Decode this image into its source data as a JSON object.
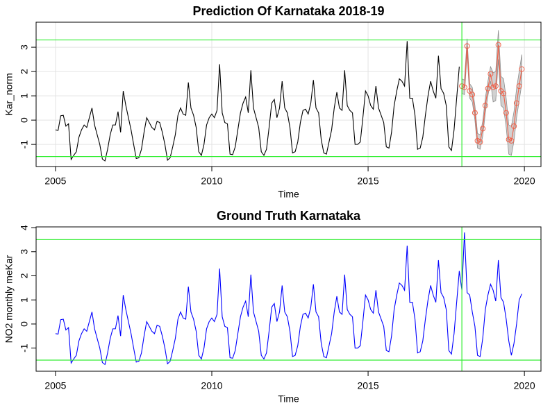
{
  "chart_data": [
    {
      "type": "line",
      "title": "Prediction Of Karnataka 2018-19",
      "x_label": "Time",
      "y_label": "Kar_norm",
      "xlim": [
        2004.38,
        2020.53
      ],
      "ylim": [
        -1.91,
        4.03
      ],
      "xticks": [
        2005,
        2010,
        2015,
        2020
      ],
      "yticks": [
        -1,
        0,
        1,
        2,
        3
      ],
      "grid": true,
      "hlines": [
        3.3,
        -1.5
      ],
      "vlines": [
        2018
      ],
      "ref_color": "#33ee33",
      "x": [
        2005,
        2005.083,
        2005.167,
        2005.25,
        2005.333,
        2005.417,
        2005.5,
        2005.583,
        2005.667,
        2005.75,
        2005.833,
        2005.917,
        2006,
        2006.083,
        2006.167,
        2006.25,
        2006.333,
        2006.417,
        2006.5,
        2006.583,
        2006.667,
        2006.75,
        2006.833,
        2006.917,
        2007,
        2007.083,
        2007.167,
        2007.25,
        2007.333,
        2007.417,
        2007.5,
        2007.583,
        2007.667,
        2007.75,
        2007.833,
        2007.917,
        2008,
        2008.083,
        2008.167,
        2008.25,
        2008.333,
        2008.417,
        2008.5,
        2008.583,
        2008.667,
        2008.75,
        2008.833,
        2008.917,
        2009,
        2009.083,
        2009.167,
        2009.25,
        2009.333,
        2009.417,
        2009.5,
        2009.583,
        2009.667,
        2009.75,
        2009.833,
        2009.917,
        2010,
        2010.083,
        2010.167,
        2010.25,
        2010.333,
        2010.417,
        2010.5,
        2010.583,
        2010.667,
        2010.75,
        2010.833,
        2010.917,
        2011,
        2011.083,
        2011.167,
        2011.25,
        2011.333,
        2011.417,
        2011.5,
        2011.583,
        2011.667,
        2011.75,
        2011.833,
        2011.917,
        2012,
        2012.083,
        2012.167,
        2012.25,
        2012.333,
        2012.417,
        2012.5,
        2012.583,
        2012.667,
        2012.75,
        2012.833,
        2012.917,
        2013,
        2013.083,
        2013.167,
        2013.25,
        2013.333,
        2013.417,
        2013.5,
        2013.583,
        2013.667,
        2013.75,
        2013.833,
        2013.917,
        2014,
        2014.083,
        2014.167,
        2014.25,
        2014.333,
        2014.417,
        2014.5,
        2014.583,
        2014.667,
        2014.75,
        2014.833,
        2014.917,
        2015,
        2015.083,
        2015.167,
        2015.25,
        2015.333,
        2015.417,
        2015.5,
        2015.583,
        2015.667,
        2015.75,
        2015.833,
        2015.917,
        2016,
        2016.083,
        2016.167,
        2016.25,
        2016.333,
        2016.417,
        2016.5,
        2016.583,
        2016.667,
        2016.75,
        2016.833,
        2016.917,
        2017,
        2017.083,
        2017.167,
        2017.25,
        2017.333,
        2017.417,
        2017.5,
        2017.583,
        2017.667,
        2017.75,
        2017.833,
        2017.917,
        2018,
        2018.083,
        2018.167,
        2018.25,
        2018.333,
        2018.417,
        2018.5,
        2018.583,
        2018.667,
        2018.75,
        2018.833,
        2018.917,
        2019,
        2019.083,
        2019.167,
        2019.25,
        2019.333,
        2019.417,
        2019.5,
        2019.583,
        2019.667,
        2019.75,
        2019.833,
        2019.917
      ],
      "band": {
        "color": "#bdbdbd",
        "x": [
          2018,
          2018.083,
          2018.167,
          2018.25,
          2018.333,
          2018.417,
          2018.5,
          2018.583,
          2018.667,
          2018.75,
          2018.833,
          2018.917,
          2019,
          2019.083,
          2019.167,
          2019.25,
          2019.333,
          2019.417,
          2019.5,
          2019.583,
          2019.667,
          2019.75,
          2019.833,
          2019.917
        ],
        "upper": [
          1.7,
          1.65,
          3.35,
          1.5,
          1.35,
          0.6,
          -0.55,
          -0.6,
          -0.05,
          0.9,
          1.6,
          2.2,
          1.95,
          2.0,
          3.7,
          1.8,
          1.7,
          0.9,
          -0.2,
          -0.25,
          0.35,
          1.3,
          2.0,
          2.7
        ],
        "lower": [
          1.1,
          1.05,
          2.75,
          0.9,
          0.75,
          0.0,
          -1.15,
          -1.2,
          -0.65,
          0.3,
          1.0,
          1.6,
          0.75,
          0.8,
          2.5,
          0.6,
          0.5,
          -0.3,
          -1.4,
          -1.45,
          -0.85,
          0.1,
          0.8,
          1.5
        ]
      },
      "series": [
        {
          "color": "#000000",
          "values": [
            -0.4,
            -0.42,
            0.18,
            0.2,
            -0.25,
            -0.15,
            -1.62,
            -1.45,
            -1.3,
            -0.7,
            -0.4,
            -0.2,
            -0.3,
            0.1,
            0.5,
            -0.2,
            -0.6,
            -1.0,
            -1.6,
            -1.68,
            -1.2,
            -0.6,
            -0.2,
            -0.2,
            0.35,
            -0.5,
            1.2,
            0.6,
            0.1,
            -0.4,
            -1.0,
            -1.58,
            -1.55,
            -1.2,
            -0.5,
            0.1,
            -0.1,
            -0.3,
            -0.4,
            -0.05,
            -0.1,
            -0.5,
            -1.0,
            -1.65,
            -1.55,
            -1.1,
            -0.6,
            0.2,
            0.5,
            0.25,
            0.2,
            1.55,
            0.5,
            0.2,
            -0.3,
            -1.3,
            -1.45,
            -1.0,
            -0.2,
            0.1,
            0.25,
            0.1,
            0.4,
            2.3,
            0.3,
            -0.1,
            -0.15,
            -1.4,
            -1.42,
            -1.1,
            -0.4,
            0.3,
            0.7,
            0.95,
            0.3,
            2.05,
            0.5,
            0.1,
            -0.3,
            -1.3,
            -1.45,
            -1.2,
            -0.3,
            0.7,
            0.85,
            0.1,
            0.5,
            1.6,
            0.5,
            0.3,
            -0.3,
            -1.35,
            -1.3,
            -0.9,
            -0.1,
            0.4,
            0.45,
            0.25,
            0.7,
            1.65,
            0.5,
            0.3,
            -0.8,
            -1.35,
            -1.4,
            -0.9,
            -0.4,
            0.5,
            1.15,
            0.5,
            0.4,
            2.05,
            0.6,
            0.4,
            0.3,
            -1.0,
            -1.0,
            -0.9,
            0.1,
            1.2,
            1.0,
            0.6,
            0.45,
            1.4,
            0.5,
            0.2,
            -0.1,
            -1.1,
            -1.15,
            -0.5,
            0.6,
            1.2,
            1.7,
            1.6,
            1.4,
            3.25,
            0.9,
            0.9,
            0.2,
            -1.2,
            -1.15,
            -0.7,
            0.2,
            1.0,
            1.6,
            1.2,
            0.9,
            2.65,
            1.3,
            1.1,
            0.6,
            -1.1,
            -1.25,
            -0.4,
            0.9,
            2.2,
            null,
            null,
            null,
            null,
            null,
            null,
            null,
            null,
            null,
            null,
            null,
            null,
            null,
            null,
            null,
            null,
            null,
            null,
            null,
            null,
            null,
            null,
            null,
            null
          ]
        },
        {
          "color": "#f06048",
          "marker": "circle",
          "values": [
            null,
            null,
            null,
            null,
            null,
            null,
            null,
            null,
            null,
            null,
            null,
            null,
            null,
            null,
            null,
            null,
            null,
            null,
            null,
            null,
            null,
            null,
            null,
            null,
            null,
            null,
            null,
            null,
            null,
            null,
            null,
            null,
            null,
            null,
            null,
            null,
            null,
            null,
            null,
            null,
            null,
            null,
            null,
            null,
            null,
            null,
            null,
            null,
            null,
            null,
            null,
            null,
            null,
            null,
            null,
            null,
            null,
            null,
            null,
            null,
            null,
            null,
            null,
            null,
            null,
            null,
            null,
            null,
            null,
            null,
            null,
            null,
            null,
            null,
            null,
            null,
            null,
            null,
            null,
            null,
            null,
            null,
            null,
            null,
            null,
            null,
            null,
            null,
            null,
            null,
            null,
            null,
            null,
            null,
            null,
            null,
            null,
            null,
            null,
            null,
            null,
            null,
            null,
            null,
            null,
            null,
            null,
            null,
            null,
            null,
            null,
            null,
            null,
            null,
            null,
            null,
            null,
            null,
            null,
            null,
            null,
            null,
            null,
            null,
            null,
            null,
            null,
            null,
            null,
            null,
            null,
            null,
            null,
            null,
            null,
            null,
            null,
            null,
            null,
            null,
            null,
            null,
            null,
            null,
            null,
            null,
            null,
            null,
            null,
            null,
            null,
            null,
            null,
            null,
            null,
            null,
            1.4,
            1.35,
            3.05,
            1.2,
            1.05,
            0.3,
            -0.85,
            -0.9,
            -0.35,
            0.6,
            1.3,
            1.9,
            1.35,
            1.4,
            3.1,
            1.2,
            1.1,
            0.3,
            -0.8,
            -0.85,
            -0.25,
            0.7,
            1.4,
            2.1
          ]
        }
      ]
    },
    {
      "type": "line",
      "title": "Ground Truth Karnataka",
      "x_label": "Time",
      "y_label": "NO2 monthly meKar",
      "xlim": [
        2004.38,
        2020.53
      ],
      "ylim": [
        -1.96,
        4.03
      ],
      "xticks": [
        2005,
        2010,
        2015,
        2020
      ],
      "yticks": [
        -1,
        0,
        1,
        2,
        3,
        4
      ],
      "grid": false,
      "hlines": [
        3.5,
        -1.5
      ],
      "vlines": [
        2018
      ],
      "ref_color": "#33ee33",
      "x": [
        2005,
        2005.083,
        2005.167,
        2005.25,
        2005.333,
        2005.417,
        2005.5,
        2005.583,
        2005.667,
        2005.75,
        2005.833,
        2005.917,
        2006,
        2006.083,
        2006.167,
        2006.25,
        2006.333,
        2006.417,
        2006.5,
        2006.583,
        2006.667,
        2006.75,
        2006.833,
        2006.917,
        2007,
        2007.083,
        2007.167,
        2007.25,
        2007.333,
        2007.417,
        2007.5,
        2007.583,
        2007.667,
        2007.75,
        2007.833,
        2007.917,
        2008,
        2008.083,
        2008.167,
        2008.25,
        2008.333,
        2008.417,
        2008.5,
        2008.583,
        2008.667,
        2008.75,
        2008.833,
        2008.917,
        2009,
        2009.083,
        2009.167,
        2009.25,
        2009.333,
        2009.417,
        2009.5,
        2009.583,
        2009.667,
        2009.75,
        2009.833,
        2009.917,
        2010,
        2010.083,
        2010.167,
        2010.25,
        2010.333,
        2010.417,
        2010.5,
        2010.583,
        2010.667,
        2010.75,
        2010.833,
        2010.917,
        2011,
        2011.083,
        2011.167,
        2011.25,
        2011.333,
        2011.417,
        2011.5,
        2011.583,
        2011.667,
        2011.75,
        2011.833,
        2011.917,
        2012,
        2012.083,
        2012.167,
        2012.25,
        2012.333,
        2012.417,
        2012.5,
        2012.583,
        2012.667,
        2012.75,
        2012.833,
        2012.917,
        2013,
        2013.083,
        2013.167,
        2013.25,
        2013.333,
        2013.417,
        2013.5,
        2013.583,
        2013.667,
        2013.75,
        2013.833,
        2013.917,
        2014,
        2014.083,
        2014.167,
        2014.25,
        2014.333,
        2014.417,
        2014.5,
        2014.583,
        2014.667,
        2014.75,
        2014.833,
        2014.917,
        2015,
        2015.083,
        2015.167,
        2015.25,
        2015.333,
        2015.417,
        2015.5,
        2015.583,
        2015.667,
        2015.75,
        2015.833,
        2015.917,
        2016,
        2016.083,
        2016.167,
        2016.25,
        2016.333,
        2016.417,
        2016.5,
        2016.583,
        2016.667,
        2016.75,
        2016.833,
        2016.917,
        2017,
        2017.083,
        2017.167,
        2017.25,
        2017.333,
        2017.417,
        2017.5,
        2017.583,
        2017.667,
        2017.75,
        2017.833,
        2017.917,
        2018,
        2018.083,
        2018.167,
        2018.25,
        2018.333,
        2018.417,
        2018.5,
        2018.583,
        2018.667,
        2018.75,
        2018.833,
        2018.917,
        2019,
        2019.083,
        2019.167,
        2019.25,
        2019.333,
        2019.417,
        2019.5,
        2019.583,
        2019.667,
        2019.75,
        2019.833,
        2019.917
      ],
      "series": [
        {
          "color": "#0000ff",
          "values": [
            -0.4,
            -0.42,
            0.18,
            0.2,
            -0.25,
            -0.15,
            -1.62,
            -1.45,
            -1.3,
            -0.7,
            -0.4,
            -0.2,
            -0.3,
            0.1,
            0.5,
            -0.2,
            -0.6,
            -1.0,
            -1.6,
            -1.68,
            -1.2,
            -0.6,
            -0.2,
            -0.2,
            0.35,
            -0.5,
            1.2,
            0.6,
            0.1,
            -0.4,
            -1.0,
            -1.58,
            -1.55,
            -1.2,
            -0.5,
            0.1,
            -0.1,
            -0.3,
            -0.4,
            -0.05,
            -0.1,
            -0.5,
            -1.0,
            -1.65,
            -1.55,
            -1.1,
            -0.6,
            0.2,
            0.5,
            0.25,
            0.2,
            1.55,
            0.5,
            0.2,
            -0.3,
            -1.3,
            -1.45,
            -1.0,
            -0.2,
            0.1,
            0.25,
            0.1,
            0.4,
            2.3,
            0.3,
            -0.1,
            -0.15,
            -1.4,
            -1.42,
            -1.1,
            -0.4,
            0.3,
            0.7,
            0.95,
            0.3,
            2.05,
            0.5,
            0.1,
            -0.3,
            -1.3,
            -1.45,
            -1.2,
            -0.3,
            0.7,
            0.85,
            0.1,
            0.5,
            1.6,
            0.5,
            0.3,
            -0.3,
            -1.35,
            -1.3,
            -0.9,
            -0.1,
            0.4,
            0.45,
            0.25,
            0.7,
            1.65,
            0.5,
            0.3,
            -0.8,
            -1.35,
            -1.4,
            -0.9,
            -0.4,
            0.5,
            1.15,
            0.5,
            0.4,
            2.05,
            0.6,
            0.4,
            0.3,
            -1.0,
            -1.0,
            -0.9,
            0.1,
            1.2,
            1.0,
            0.6,
            0.45,
            1.4,
            0.5,
            0.2,
            -0.1,
            -1.1,
            -1.15,
            -0.5,
            0.6,
            1.2,
            1.7,
            1.6,
            1.4,
            3.25,
            0.9,
            0.9,
            0.2,
            -1.2,
            -1.15,
            -0.7,
            0.2,
            1.0,
            1.6,
            1.2,
            0.9,
            2.65,
            1.3,
            1.1,
            0.6,
            -1.1,
            -1.25,
            -0.4,
            0.9,
            2.2,
            1.4,
            3.8,
            1.3,
            1.2,
            0.5,
            -0.1,
            -1.3,
            -1.35,
            -0.6,
            0.6,
            1.2,
            1.65,
            1.4,
            0.95,
            2.65,
            1.1,
            0.9,
            0.2,
            -0.7,
            -1.3,
            -0.8,
            0.0,
            1.0,
            1.25
          ]
        }
      ]
    }
  ]
}
